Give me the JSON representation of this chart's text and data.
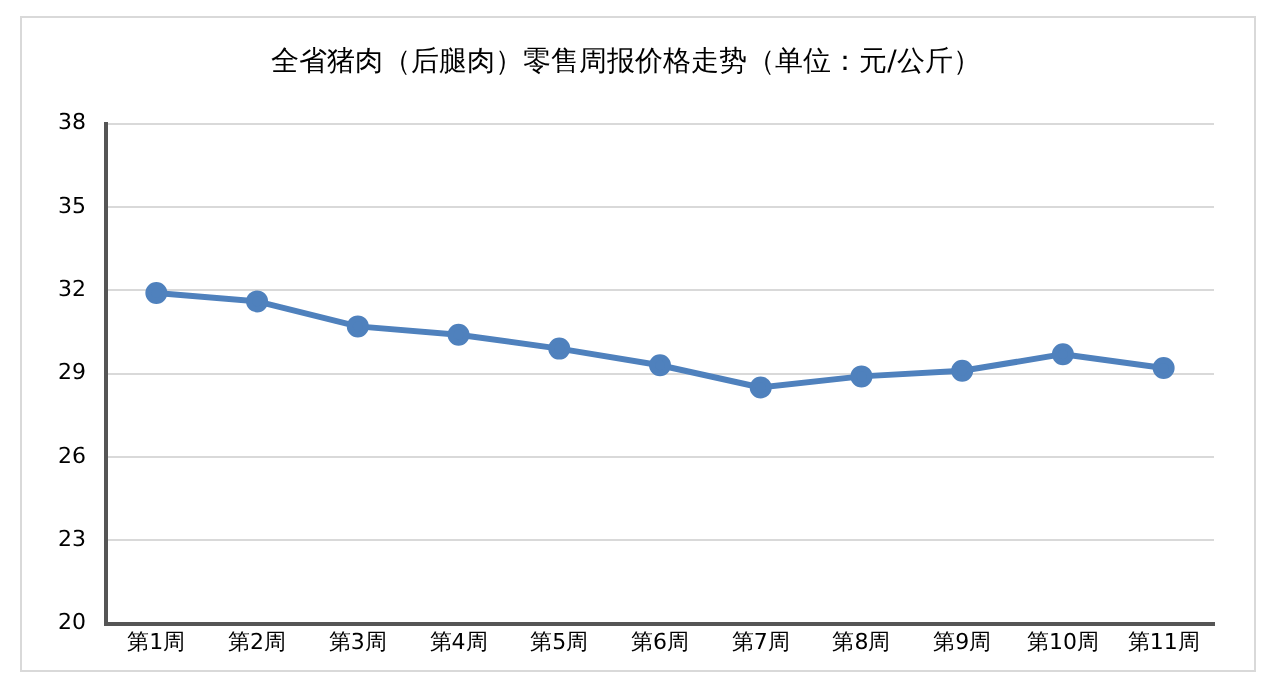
{
  "chart_data": {
    "type": "line",
    "title": "全省猪肉（后腿肉）零售周报价格走势（单位：元/公斤）",
    "categories": [
      "第1周",
      "第2周",
      "第3周",
      "第4周",
      "第5周",
      "第6周",
      "第7周",
      "第8周",
      "第9周",
      "第10周",
      "第11周"
    ],
    "series": [
      {
        "color": "#4f81bd",
        "values": [
          31.9,
          31.6,
          30.7,
          30.4,
          29.9,
          29.3,
          28.5,
          28.9,
          29.1,
          29.7,
          29.2
        ]
      }
    ],
    "ylim": [
      20,
      38
    ],
    "yticks": [
      20,
      23,
      26,
      29,
      32,
      35,
      38
    ],
    "grid": "y",
    "legend": false,
    "marker": "circle",
    "line_style": "solid"
  }
}
